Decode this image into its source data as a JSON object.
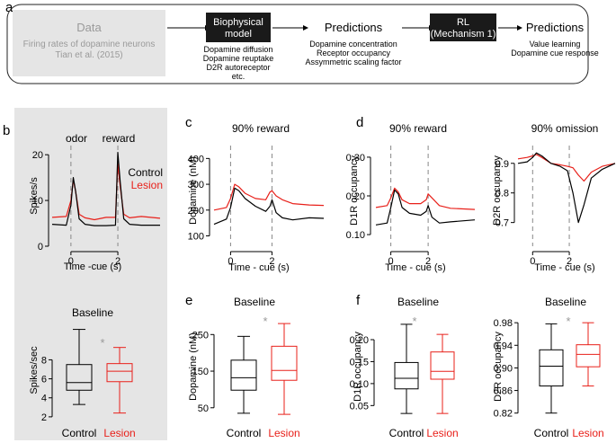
{
  "panel_labels": {
    "a": "a",
    "b": "b",
    "c": "c",
    "d": "d",
    "e": "e",
    "f": "f"
  },
  "pipeline": {
    "data_title": "Data",
    "data_line1": "Firing rates of dopamine neurons",
    "data_line2": "Tian et al. (2015)",
    "model_line1": "Biophysical",
    "model_line2": "model",
    "model_items": [
      "Dopamine diffusion",
      "Dopamine reuptake",
      "D2R autoreceptor",
      "etc."
    ],
    "pred1_title": "Predictions",
    "pred1_items": [
      "Dopamine concentration",
      "Receptor occupancy",
      "Assymmetric scaling factor"
    ],
    "rl_line1": "RL",
    "rl_line2": "(Mechanism 1)",
    "pred2_title": "Predictions",
    "pred2_items": [
      "Value learning",
      "Dopamine cue response"
    ]
  },
  "colors": {
    "control": "#000000",
    "lesion": "#e8201a",
    "gray_bg": "#e5e5e5",
    "star": "#999999",
    "data_text": "#9a9a9a"
  },
  "chart_data": [
    {
      "id": "b-top",
      "type": "line",
      "ylabel": "Spikes/s",
      "xlabel": "Time -cue (s)",
      "yticks": [
        "0",
        "10",
        "20"
      ],
      "xticks": [
        "0",
        "2"
      ],
      "event_labels": [
        "odor",
        "reward"
      ],
      "legend": [
        "Control",
        "Lesion"
      ],
      "series": [
        {
          "name": "Control",
          "x": [
            -0.8,
            -0.2,
            0,
            0.1,
            0.2,
            0.35,
            0.6,
            1,
            1.5,
            1.9,
            2,
            2.1,
            2.25,
            2.5,
            3,
            3.8
          ],
          "y": [
            4.8,
            4.6,
            9,
            15,
            12,
            6,
            4.8,
            4.5,
            4.5,
            4.6,
            20.5,
            14,
            6,
            4.8,
            4.6,
            4.6
          ]
        },
        {
          "name": "Lesion",
          "x": [
            -0.8,
            -0.2,
            0,
            0.1,
            0.2,
            0.35,
            0.6,
            1,
            1.5,
            1.9,
            2,
            2.1,
            2.25,
            2.5,
            3,
            3.8
          ],
          "y": [
            6.3,
            6.5,
            10,
            14.5,
            12,
            7,
            6.2,
            5.8,
            6.3,
            6.3,
            18,
            13,
            7,
            6.2,
            6.5,
            6.1
          ]
        }
      ]
    },
    {
      "id": "b-bottom",
      "type": "box",
      "title": "Baseline",
      "ylabel": "Spikes/sec",
      "yticks": [
        "2",
        "4",
        "6",
        "8"
      ],
      "categories": [
        "Control",
        "Lesion"
      ],
      "annotation": "*",
      "boxes": [
        {
          "name": "Control",
          "whislo": 3.3,
          "q1": 4.8,
          "med": 5.6,
          "q3": 7.5,
          "whishi": 11.2
        },
        {
          "name": "Lesion",
          "whislo": 2.4,
          "q1": 5.7,
          "med": 6.8,
          "q3": 7.6,
          "whishi": 9.3
        }
      ]
    },
    {
      "id": "c",
      "type": "line",
      "title": "90% reward",
      "ylabel": "Dopamine (nM)",
      "xlabel": "Time - cue (s)",
      "yticks": [
        "100",
        "200",
        "300",
        "400"
      ],
      "xticks": [
        "0",
        "2"
      ],
      "series": [
        {
          "name": "Control",
          "x": [
            -0.8,
            -0.2,
            0,
            0.2,
            0.4,
            0.7,
            1.2,
            1.7,
            1.9,
            2,
            2.2,
            2.5,
            3,
            3.8,
            4.5
          ],
          "y": [
            145,
            165,
            210,
            285,
            275,
            245,
            215,
            195,
            215,
            240,
            190,
            170,
            162,
            170,
            168
          ]
        },
        {
          "name": "Lesion",
          "x": [
            -0.8,
            -0.2,
            0,
            0.2,
            0.4,
            0.7,
            1.2,
            1.7,
            1.9,
            2,
            2.2,
            2.5,
            3,
            3.8,
            4.5
          ],
          "y": [
            200,
            210,
            245,
            300,
            290,
            265,
            245,
            240,
            270,
            275,
            255,
            240,
            225,
            220,
            218
          ]
        }
      ]
    },
    {
      "id": "d-left",
      "type": "line",
      "title": "90% reward",
      "ylabel": "D1R occupancy",
      "xlabel": "Time - cue (s)",
      "yticks": [
        "0.10",
        "0.20",
        "0.30"
      ],
      "xticks": [
        "0",
        "2"
      ],
      "series": [
        {
          "name": "Control",
          "x": [
            -0.8,
            -0.2,
            0,
            0.2,
            0.4,
            0.6,
            1,
            1.6,
            1.9,
            2,
            2.2,
            2.6,
            3.2,
            4.5
          ],
          "y": [
            0.125,
            0.13,
            0.17,
            0.215,
            0.205,
            0.17,
            0.155,
            0.15,
            0.16,
            0.175,
            0.145,
            0.13,
            0.133,
            0.138
          ]
        },
        {
          "name": "Lesion",
          "x": [
            -0.8,
            -0.2,
            0,
            0.2,
            0.4,
            0.6,
            1,
            1.6,
            1.9,
            2,
            2.2,
            2.6,
            3.2,
            4.5
          ],
          "y": [
            0.17,
            0.175,
            0.195,
            0.22,
            0.21,
            0.19,
            0.18,
            0.18,
            0.19,
            0.205,
            0.195,
            0.175,
            0.168,
            0.165
          ]
        }
      ]
    },
    {
      "id": "d-right",
      "type": "line",
      "title": "90% omission",
      "ylabel": "D2R occupancy",
      "xlabel": "Time - cue (s)",
      "yticks": [
        "0.7",
        "0.8",
        "0.9"
      ],
      "xticks": [
        "0",
        "2"
      ],
      "series": [
        {
          "name": "Control",
          "x": [
            -0.8,
            -0.3,
            0,
            0.2,
            0.5,
            1,
            1.5,
            1.9,
            2.2,
            2.5,
            2.8,
            3.2,
            3.8,
            4.5
          ],
          "y": [
            0.9,
            0.905,
            0.92,
            0.935,
            0.925,
            0.9,
            0.89,
            0.875,
            0.8,
            0.7,
            0.76,
            0.85,
            0.88,
            0.9
          ]
        },
        {
          "name": "Lesion",
          "x": [
            -0.8,
            -0.3,
            0,
            0.2,
            0.5,
            1,
            1.5,
            1.9,
            2.2,
            2.5,
            2.8,
            3.2,
            3.8,
            4.5
          ],
          "y": [
            0.915,
            0.92,
            0.925,
            0.93,
            0.92,
            0.9,
            0.895,
            0.89,
            0.885,
            0.86,
            0.84,
            0.87,
            0.89,
            0.9
          ]
        }
      ]
    },
    {
      "id": "e",
      "type": "box",
      "title": "Baseline",
      "ylabel": "Dopamine (nM)",
      "yticks": [
        "50",
        "150",
        "250"
      ],
      "categories": [
        "Control",
        "Lesion"
      ],
      "annotation": "*",
      "boxes": [
        {
          "name": "Control",
          "whislo": 35,
          "q1": 98,
          "med": 132,
          "q3": 180,
          "whishi": 245
        },
        {
          "name": "Lesion",
          "whislo": 32,
          "q1": 125,
          "med": 152,
          "q3": 218,
          "whishi": 280
        }
      ]
    },
    {
      "id": "f-left",
      "type": "box",
      "title": "Baseline",
      "ylabel": "D1R occupancy",
      "yticks": [
        "0.05",
        "0.10",
        "0.15",
        "0.20"
      ],
      "categories": [
        "Control",
        "Lesion"
      ],
      "annotation": "*",
      "boxes": [
        {
          "name": "Control",
          "whislo": 0.032,
          "q1": 0.088,
          "med": 0.112,
          "q3": 0.148,
          "whishi": 0.235
        },
        {
          "name": "Lesion",
          "whislo": 0.032,
          "q1": 0.11,
          "med": 0.128,
          "q3": 0.172,
          "whishi": 0.212
        }
      ]
    },
    {
      "id": "f-right",
      "type": "box",
      "title": "Baseline",
      "ylabel": "D2R occupancy",
      "yticks": [
        "0.82",
        "0.86",
        "0.90",
        "0.94",
        "0.98"
      ],
      "categories": [
        "Control",
        "Lesion"
      ],
      "annotation": "*",
      "boxes": [
        {
          "name": "Control",
          "whislo": 0.82,
          "q1": 0.868,
          "med": 0.903,
          "q3": 0.932,
          "whishi": 0.978
        },
        {
          "name": "Lesion",
          "whislo": 0.868,
          "q1": 0.902,
          "med": 0.924,
          "q3": 0.941,
          "whishi": 0.98
        }
      ]
    }
  ]
}
